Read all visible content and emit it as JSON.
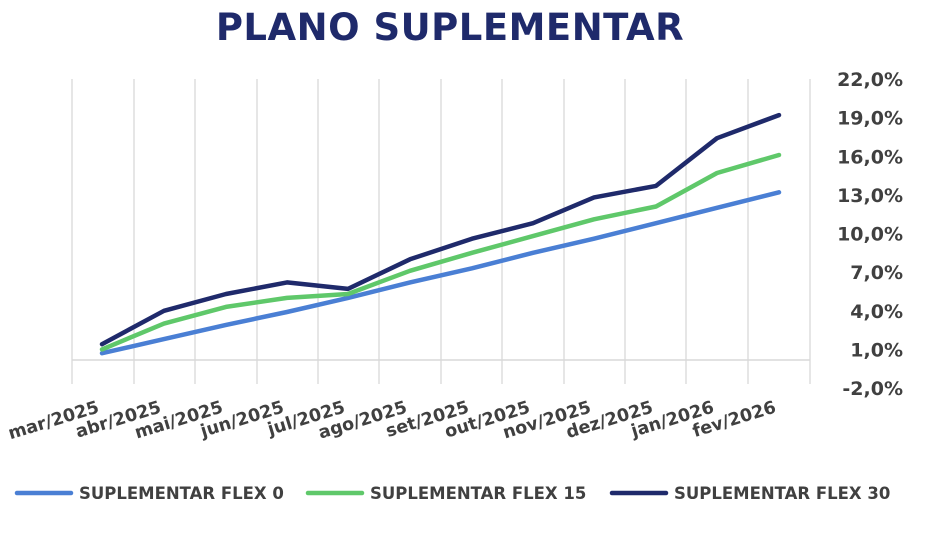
{
  "chart_data": {
    "type": "line",
    "title": "PLANO SUPLEMENTAR",
    "xlabel": "",
    "ylabel": "",
    "categories": [
      "mar/2025",
      "abr/2025",
      "mai/2025",
      "jun/2025",
      "jul/2025",
      "ago/2025",
      "set/2025",
      "out/2025",
      "nov/2025",
      "dez/2025",
      "jan/2026",
      "fev/2026"
    ],
    "y_ticks": [
      "22,0%",
      "19,0%",
      "16,0%",
      "13,0%",
      "10,0%",
      "7,0%",
      "4,0%",
      "1,0%",
      "-2,0%"
    ],
    "ylim": [
      -2.0,
      22.0
    ],
    "y_tick_step": 3.0,
    "grid": "vertical",
    "legend_position": "bottom",
    "series": [
      {
        "name": "SUPLEMENTAR FLEX 0",
        "color": "#4a7fd4",
        "values": [
          0.7,
          1.8,
          2.9,
          3.9,
          5.0,
          6.2,
          7.3,
          8.5,
          9.6,
          10.8,
          12.0,
          13.2
        ]
      },
      {
        "name": "SUPLEMENTAR FLEX 15",
        "color": "#5fc86a",
        "values": [
          1.0,
          3.0,
          4.3,
          5.0,
          5.3,
          7.1,
          8.5,
          9.8,
          11.1,
          12.1,
          14.7,
          16.1
        ]
      },
      {
        "name": "SUPLEMENTAR FLEX 30",
        "color": "#1f2a6b",
        "values": [
          1.4,
          4.0,
          5.3,
          6.2,
          5.7,
          8.0,
          9.6,
          10.8,
          12.8,
          13.7,
          17.4,
          19.2
        ]
      }
    ]
  }
}
